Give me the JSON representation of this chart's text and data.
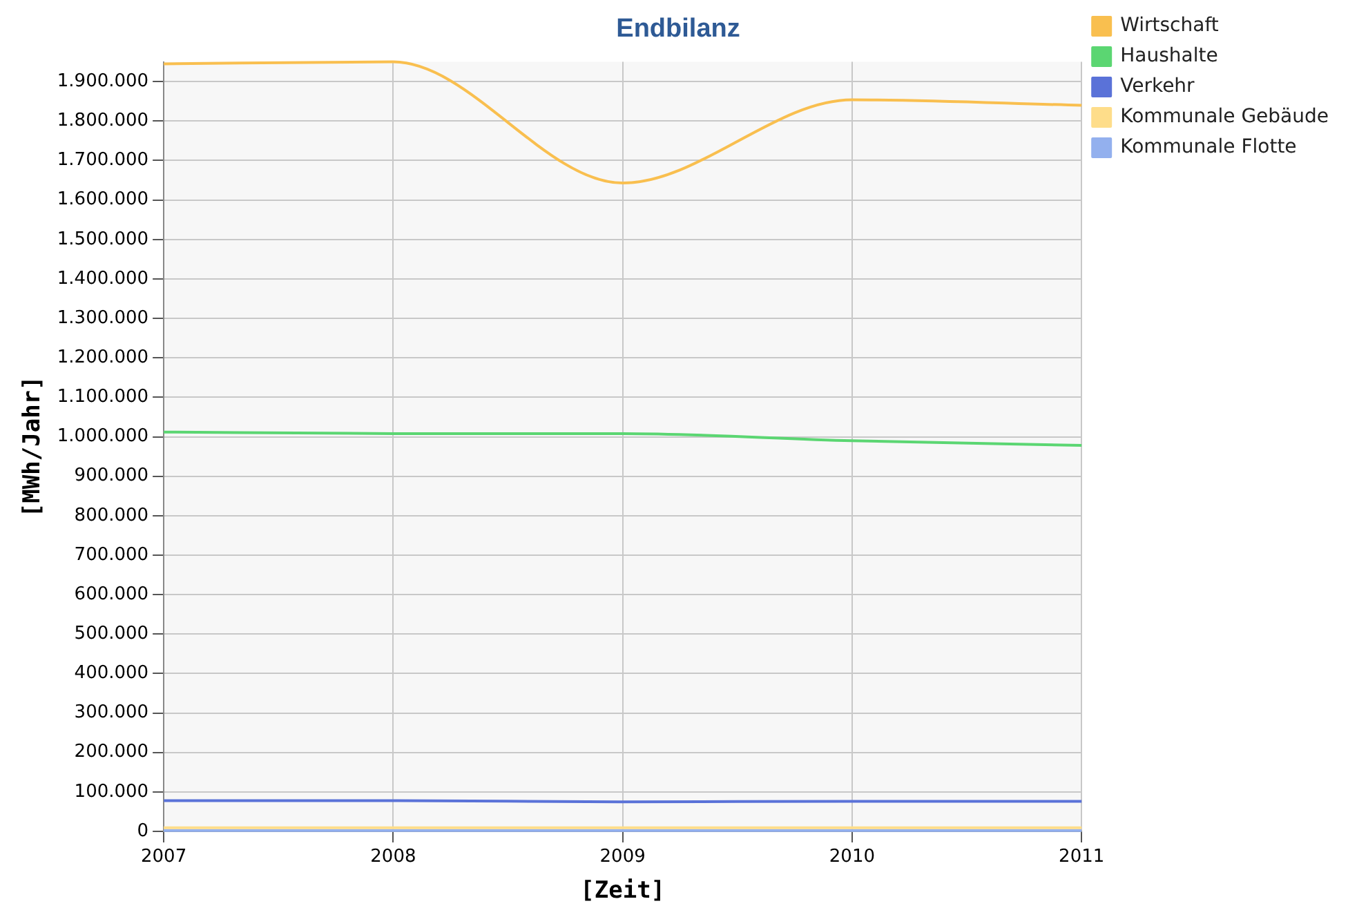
{
  "chart_data": {
    "type": "line",
    "title": "Endbilanz",
    "xlabel": "[Zeit]",
    "ylabel": "[MWh/Jahr]",
    "x": [
      2007,
      2008,
      2009,
      2010,
      2011
    ],
    "series": [
      {
        "name": "Wirtschaft",
        "color": "#f9bf4f",
        "values": [
          1945000,
          1950000,
          1643000,
          1854000,
          1840000
        ]
      },
      {
        "name": "Haushalte",
        "color": "#5bd672",
        "values": [
          1012000,
          1008000,
          1008000,
          990000,
          978000
        ]
      },
      {
        "name": "Verkehr",
        "color": "#5a72d8",
        "values": [
          78000,
          78000,
          75000,
          76000,
          76000
        ]
      },
      {
        "name": "Kommunale Gebäude",
        "color": "#fedd8a",
        "values": [
          9000,
          9000,
          9000,
          9000,
          9000
        ]
      },
      {
        "name": "Kommunale Flotte",
        "color": "#93b0ee",
        "values": [
          2000,
          2000,
          2000,
          2000,
          2000
        ]
      }
    ],
    "xlim": [
      2007,
      2011
    ],
    "xticks": [
      2007,
      2008,
      2009,
      2010,
      2011
    ],
    "ylim": [
      0,
      1950000
    ],
    "yticks": [
      0,
      {
        "value": 100000,
        "label": "100.000"
      },
      {
        "value": 200000,
        "label": "200.000"
      },
      {
        "value": 300000,
        "label": "300.000"
      },
      {
        "value": 400000,
        "label": "400.000"
      },
      {
        "value": 500000,
        "label": "500.000"
      },
      {
        "value": 600000,
        "label": "600.000"
      },
      {
        "value": 700000,
        "label": "700.000"
      },
      {
        "value": 800000,
        "label": "800.000"
      },
      {
        "value": 900000,
        "label": "900.000"
      },
      {
        "value": 1000000,
        "label": "1.000.000"
      },
      {
        "value": 1100000,
        "label": "1.100.000"
      },
      {
        "value": 1200000,
        "label": "1.200.000"
      },
      {
        "value": 1300000,
        "label": "1.300.000"
      },
      {
        "value": 1400000,
        "label": "1.400.000"
      },
      {
        "value": 1500000,
        "label": "1.500.000"
      },
      {
        "value": 1600000,
        "label": "1.600.000"
      },
      {
        "value": 1700000,
        "label": "1.700.000"
      },
      {
        "value": 1800000,
        "label": "1.800.000"
      },
      {
        "value": 1900000,
        "label": "1.900.000"
      }
    ],
    "grid": true,
    "legend": "top right",
    "marker": "none",
    "line_style": "solid"
  }
}
